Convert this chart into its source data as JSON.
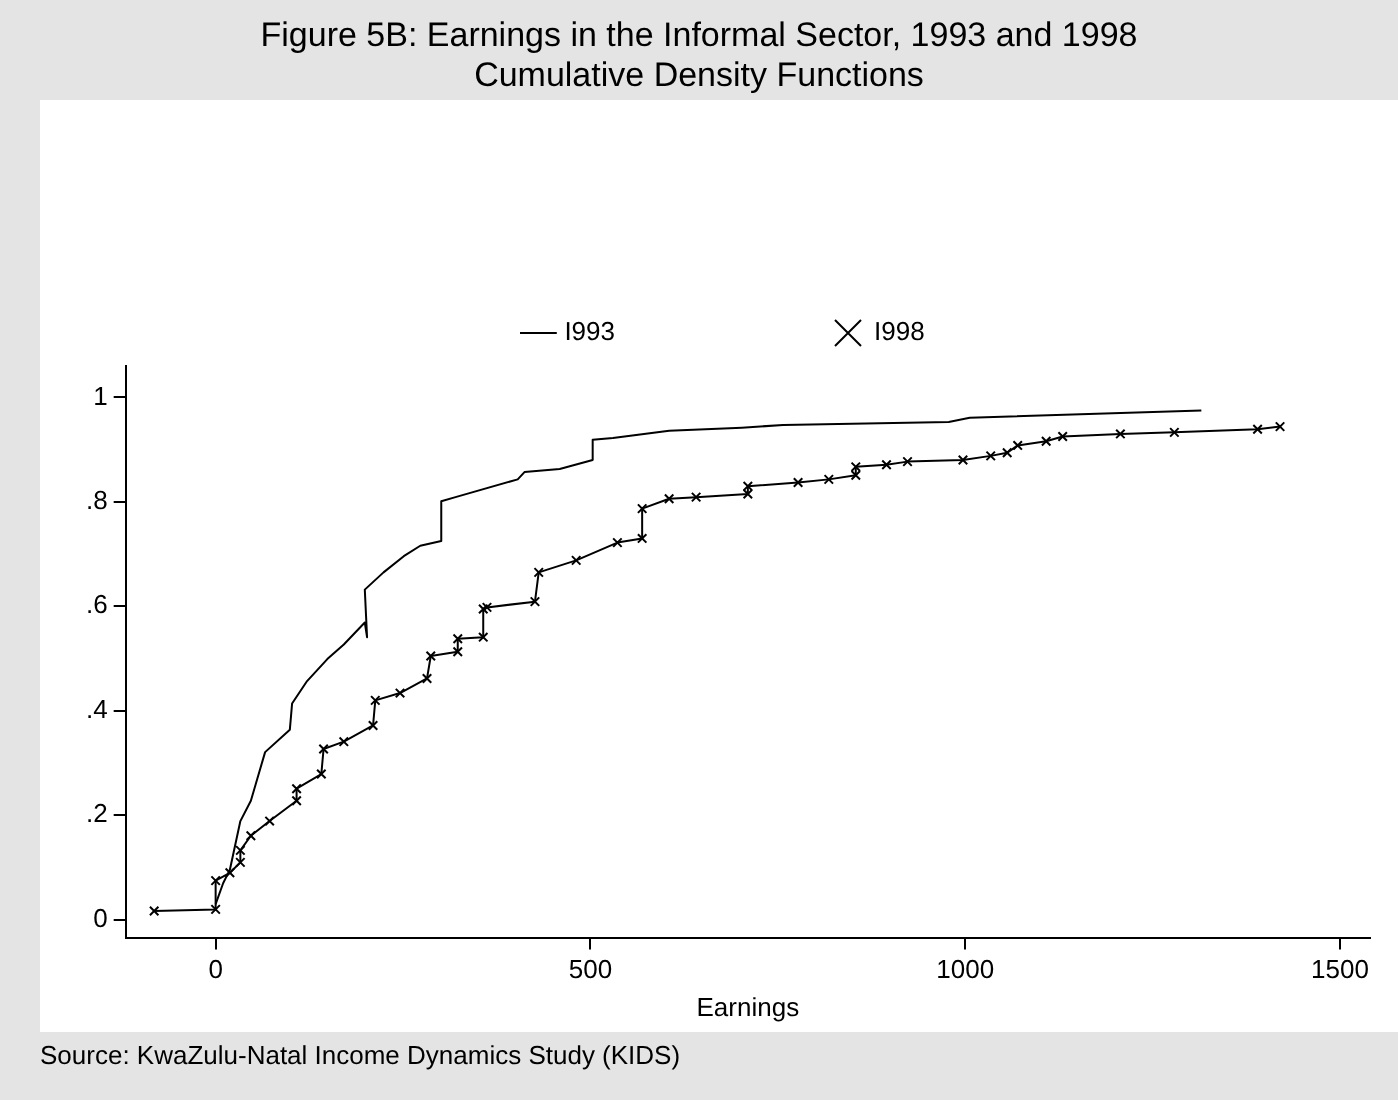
{
  "chart_data": {
    "type": "line",
    "title": "Figure 5B: Earnings in the Informal Sector, 1993 and 1998",
    "subtitle": "Cumulative Density Functions",
    "xlabel": "Earnings",
    "annotations": [
      "Source: KwaZulu-Natal Income Dynamics Study (KIDS)"
    ],
    "legend": "top",
    "grid": false,
    "line_style": "solid",
    "xlim": [
      -120,
      1540
    ],
    "xticks": [
      0,
      500,
      1000,
      1500
    ],
    "ylim": [
      -0.034,
      1.06
    ],
    "yticks": [
      0,
      {
        "value": 0.2,
        "label": ".2"
      },
      {
        "value": 0.4,
        "label": ".4"
      },
      {
        "value": 0.6,
        "label": ".6"
      },
      {
        "value": 0.8,
        "label": ".8"
      },
      1
    ],
    "series": [
      {
        "name": "I993",
        "color": "#000000",
        "marker": "none",
        "x": [
          0,
          10,
          19,
          33,
          47,
          66,
          99,
          102,
          122,
          149,
          171,
          199,
          202,
          199,
          224,
          251,
          273,
          301,
          301,
          320,
          403,
          412,
          459,
          503,
          503,
          530,
          605,
          702,
          757,
          978,
          1006,
          1315
        ],
        "values": [
          0.03,
          0.07,
          0.096,
          0.189,
          0.228,
          0.321,
          0.364,
          0.414,
          0.457,
          0.499,
          0.527,
          0.569,
          0.541,
          0.632,
          0.665,
          0.696,
          0.716,
          0.725,
          0.801,
          0.809,
          0.843,
          0.857,
          0.863,
          0.88,
          0.919,
          0.922,
          0.936,
          0.942,
          0.947,
          0.953,
          0.961,
          0.975
        ]
      },
      {
        "name": "I998",
        "color": "#000000",
        "marker": "cross",
        "x": [
          -82,
          0,
          0,
          19,
          33,
          33,
          47,
          72,
          108,
          108,
          141,
          144,
          171,
          210,
          213,
          246,
          282,
          287,
          323,
          323,
          357,
          357,
          362,
          426,
          431,
          481,
          536,
          569,
          569,
          605,
          641,
          710,
          710,
          777,
          818,
          854,
          854,
          895,
          923,
          997,
          1034,
          1056,
          1070,
          1108,
          1130,
          1207,
          1279,
          1390,
          1420
        ],
        "values": [
          0.017,
          0.02,
          0.075,
          0.09,
          0.11,
          0.133,
          0.161,
          0.189,
          0.228,
          0.251,
          0.279,
          0.327,
          0.341,
          0.372,
          0.42,
          0.434,
          0.462,
          0.505,
          0.513,
          0.538,
          0.541,
          0.595,
          0.598,
          0.609,
          0.665,
          0.688,
          0.722,
          0.73,
          0.787,
          0.806,
          0.809,
          0.815,
          0.83,
          0.837,
          0.843,
          0.851,
          0.867,
          0.871,
          0.877,
          0.88,
          0.888,
          0.894,
          0.908,
          0.916,
          0.925,
          0.93,
          0.933,
          0.939,
          0.944
        ]
      }
    ]
  }
}
